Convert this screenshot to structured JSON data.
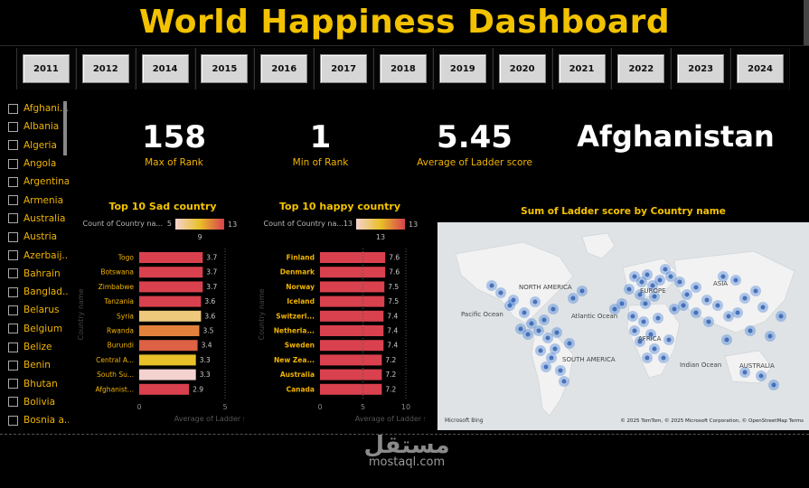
{
  "header": {
    "title": "World Happiness Dashboard"
  },
  "years": [
    "2011",
    "2012",
    "2014",
    "2015",
    "2016",
    "2017",
    "2018",
    "2019",
    "2020",
    "2021",
    "2022",
    "2023",
    "2024"
  ],
  "countries": [
    "Afghani...",
    "Albania",
    "Algeria",
    "Angola",
    "Argentina",
    "Armenia",
    "Australia",
    "Austria",
    "Azerbaij...",
    "Bahrain",
    "Banglad...",
    "Belarus",
    "Belgium",
    "Belize",
    "Benin",
    "Bhutan",
    "Bolivia",
    "Bosnia a..."
  ],
  "kpis": [
    {
      "value": "158",
      "label": "Max of Rank"
    },
    {
      "value": "1",
      "label": "Min of Rank"
    },
    {
      "value": "5.45",
      "label": "Average of Ladder score"
    },
    {
      "value": "Afghanistan",
      "label": ""
    }
  ],
  "sad_chart": {
    "title": "Top 10 Sad country",
    "legend_label": "Count of Country na...",
    "legend_min": "5",
    "legend_mid": "9",
    "legend_max": "13",
    "ylabel": "Country name",
    "xlabel": "Average of Ladder score",
    "ticks": [
      "0",
      "5"
    ]
  },
  "happy_chart": {
    "title": "Top 10 happy country",
    "legend_label": "Count of Country na...",
    "legend_min": "13",
    "legend_mid": "13",
    "legend_max": "13",
    "ylabel": "Country name",
    "xlabel": "Average of Ladder score",
    "ticks": [
      "0",
      "5",
      "10"
    ]
  },
  "map": {
    "title": "Sum of Ladder score by Country name",
    "labels": [
      "NORTH AMERICA",
      "EUROPE",
      "ASIA",
      "Pacific Ocean",
      "Atlantic Ocean",
      "AFRICA",
      "SOUTH AMERICA",
      "Indian Ocean",
      "AUSTRALIA"
    ],
    "attribution": "© 2025 TomTom, © 2025 Microsoft Corporation, © OpenStreetMap  Terms",
    "brand": "Microsoft Bing"
  },
  "watermark": {
    "arabic": "مستقل",
    "latin": "mostaql.com"
  },
  "chart_data": [
    {
      "type": "bar",
      "title": "Top 10 Sad country",
      "categories": [
        "Togo",
        "Botswana",
        "Zimbabwe",
        "Tanzania",
        "Syria",
        "Rwanda",
        "Burundi",
        "Central A...",
        "South Su...",
        "Afghanist..."
      ],
      "values": [
        3.7,
        3.7,
        3.7,
        3.6,
        3.6,
        3.5,
        3.4,
        3.3,
        3.3,
        2.9
      ],
      "counts": [
        13,
        13,
        13,
        13,
        7,
        11,
        12,
        9,
        5,
        13
      ],
      "xlim": [
        0,
        5
      ],
      "xlabel": "Average of Ladder score",
      "ylabel": "Country name"
    },
    {
      "type": "bar",
      "title": "Top 10 happy country",
      "categories": [
        "Finland",
        "Denmark",
        "Norway",
        "Iceland",
        "Switzerl...",
        "Netherla...",
        "Sweden",
        "New Zea...",
        "Australia",
        "Canada"
      ],
      "values": [
        7.6,
        7.6,
        7.5,
        7.5,
        7.4,
        7.4,
        7.4,
        7.2,
        7.2,
        7.2
      ],
      "counts": [
        13,
        13,
        13,
        13,
        13,
        13,
        13,
        13,
        13,
        13
      ],
      "xlim": [
        0,
        10
      ],
      "xlabel": "Average of Ladder score",
      "ylabel": "Country name"
    }
  ]
}
